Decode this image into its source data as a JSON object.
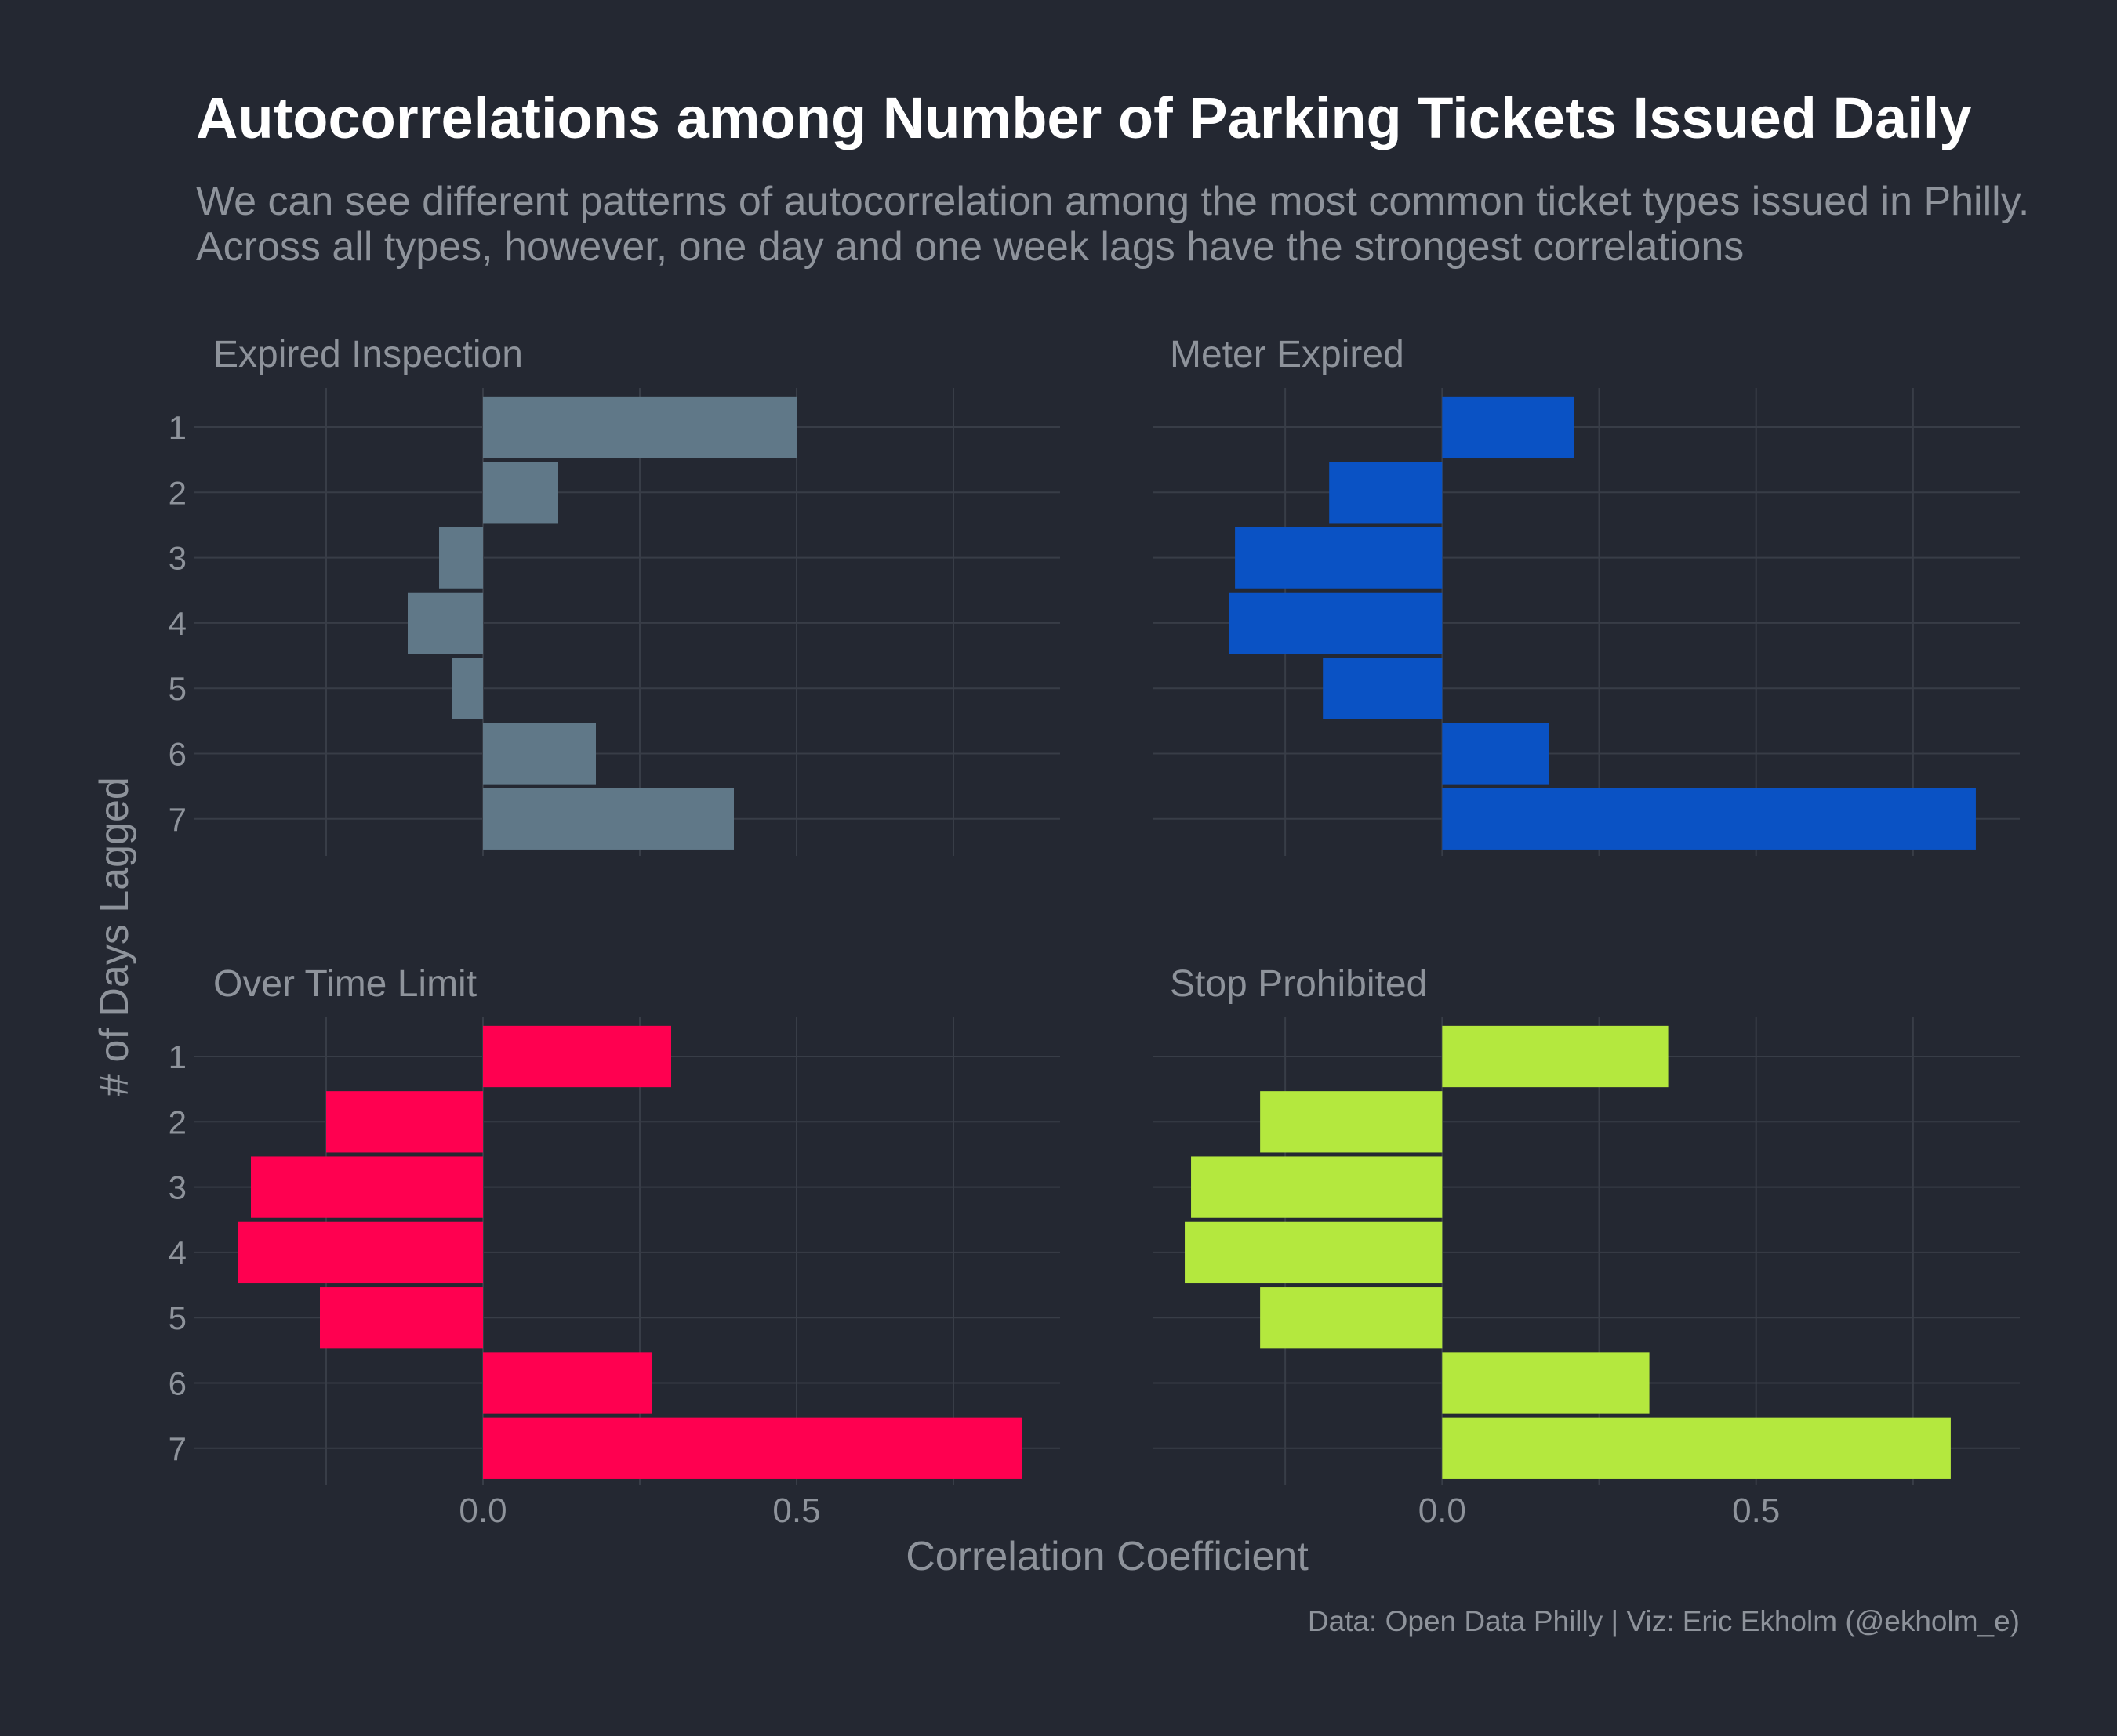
{
  "header": {
    "title": "Autocorrelations among Number of Parking Tickets Issued Daily",
    "subtitle": "We can see different patterns of autocorrelation among the most common ticket types issued in Philly. Across all types, however, one day and one week lags have the strongest correlations"
  },
  "caption": "Data: Open Data Philly | Viz: Eric Ekholm (@ekholm_e)",
  "colors": {
    "background": "#242832",
    "grid": "#383d47",
    "text_muted": "#8e939b",
    "title": "#ffffff"
  },
  "chart_data": {
    "type": "bar",
    "orientation": "horizontal",
    "facets": 4,
    "facet_layout": "2x2",
    "xlabel": "Correlation Coefficient",
    "ylabel": "# of Days Lagged",
    "categories": [
      "1",
      "2",
      "3",
      "4",
      "5",
      "6",
      "7"
    ],
    "xlim": [
      -0.46,
      0.92
    ],
    "x_ticks": [
      0.0,
      0.5
    ],
    "x_tick_labels": [
      "0.0",
      "0.5"
    ],
    "grid": true,
    "legend": "none",
    "series": [
      {
        "name": "Expired Inspection",
        "color": "#607888",
        "values": [
          0.5,
          0.12,
          -0.07,
          -0.12,
          -0.05,
          0.18,
          0.4
        ]
      },
      {
        "name": "Meter Expired",
        "color": "#0a52c4",
        "values": [
          0.21,
          -0.18,
          -0.33,
          -0.34,
          -0.19,
          0.17,
          0.85
        ]
      },
      {
        "name": "Over Time Limit",
        "color": "#ff0050",
        "values": [
          0.3,
          -0.25,
          -0.37,
          -0.39,
          -0.26,
          0.27,
          0.86
        ]
      },
      {
        "name": "Stop Prohibited",
        "color": "#b4e83e",
        "values": [
          0.36,
          -0.29,
          -0.4,
          -0.41,
          -0.29,
          0.33,
          0.81
        ]
      }
    ]
  }
}
